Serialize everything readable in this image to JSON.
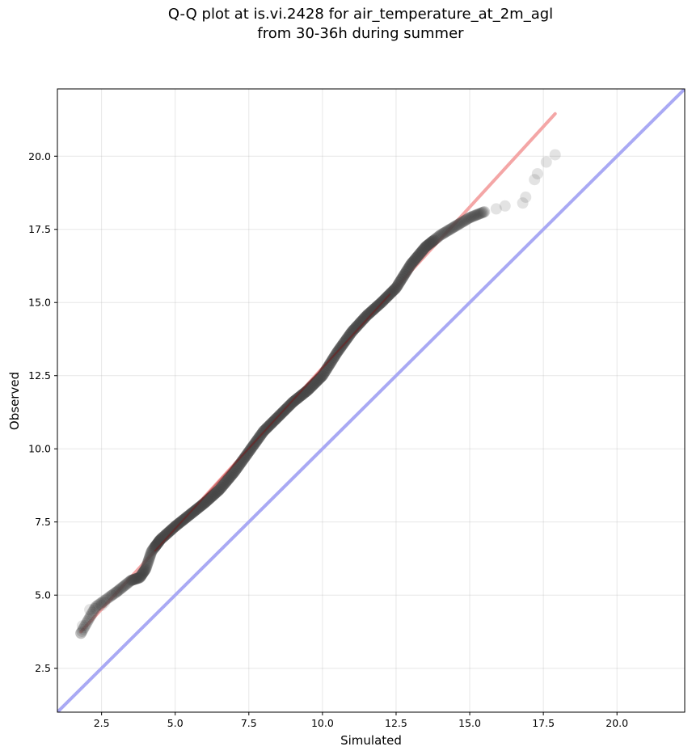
{
  "title_line1": "Q-Q plot at is.vi.2428 for air_temperature_at_2m_agl",
  "title_line2": "from 30-36h during summer",
  "chart_data": {
    "type": "scatter",
    "title": "Q-Q plot at is.vi.2428 for air_temperature_at_2m_agl\nfrom 30-36h during summer",
    "xlabel": "Simulated",
    "ylabel": "Observed",
    "xlim": [
      1.0,
      22.3
    ],
    "ylim": [
      1.0,
      22.3
    ],
    "x_ticks": [
      "2.5",
      "5.0",
      "7.5",
      "10.0",
      "12.5",
      "15.0",
      "17.5",
      "20.0"
    ],
    "y_ticks": [
      "2.5",
      "5.0",
      "7.5",
      "10.0",
      "12.5",
      "15.0",
      "17.5",
      "20.0"
    ],
    "grid": true,
    "colors": {
      "points": "#444444",
      "fit_line": "#f4a6a6",
      "identity_line": "#a9a9f4",
      "fit_core": "#8b0000"
    },
    "fit_line": {
      "x": [
        1.8,
        17.9
      ],
      "y": [
        3.75,
        21.45
      ]
    },
    "identity_line": {
      "x": [
        1.0,
        22.3
      ],
      "y": [
        1.0,
        22.3
      ]
    },
    "quantile_curve": {
      "x": [
        1.8,
        2.3,
        3.0,
        3.5,
        3.8,
        4.0,
        4.2,
        4.5,
        5.0,
        5.5,
        6.0,
        6.5,
        7.0,
        7.5,
        8.0,
        8.5,
        9.0,
        9.5,
        10.0,
        10.5,
        11.0,
        11.5,
        12.0,
        12.5,
        13.0,
        13.5,
        14.0,
        14.5,
        15.0,
        15.5
      ],
      "y": [
        3.7,
        4.6,
        5.1,
        5.5,
        5.6,
        5.9,
        6.5,
        6.9,
        7.35,
        7.75,
        8.15,
        8.6,
        9.2,
        9.9,
        10.6,
        11.1,
        11.6,
        12.0,
        12.5,
        13.3,
        14.0,
        14.55,
        15.0,
        15.5,
        16.3,
        16.9,
        17.3,
        17.6,
        17.9,
        18.1
      ]
    },
    "upper_tail": {
      "x": [
        15.9,
        16.2,
        16.8,
        16.9,
        17.2,
        17.3,
        17.6,
        17.9
      ],
      "y": [
        18.2,
        18.3,
        18.4,
        18.6,
        19.2,
        19.4,
        19.8,
        20.05
      ]
    },
    "lower_tail": {
      "x": [
        1.8,
        1.85,
        2.1,
        2.3,
        2.5,
        2.6,
        2.85,
        3.0
      ],
      "y": [
        3.7,
        3.95,
        4.5,
        4.55,
        4.65,
        4.75,
        5.0,
        5.1
      ]
    }
  }
}
